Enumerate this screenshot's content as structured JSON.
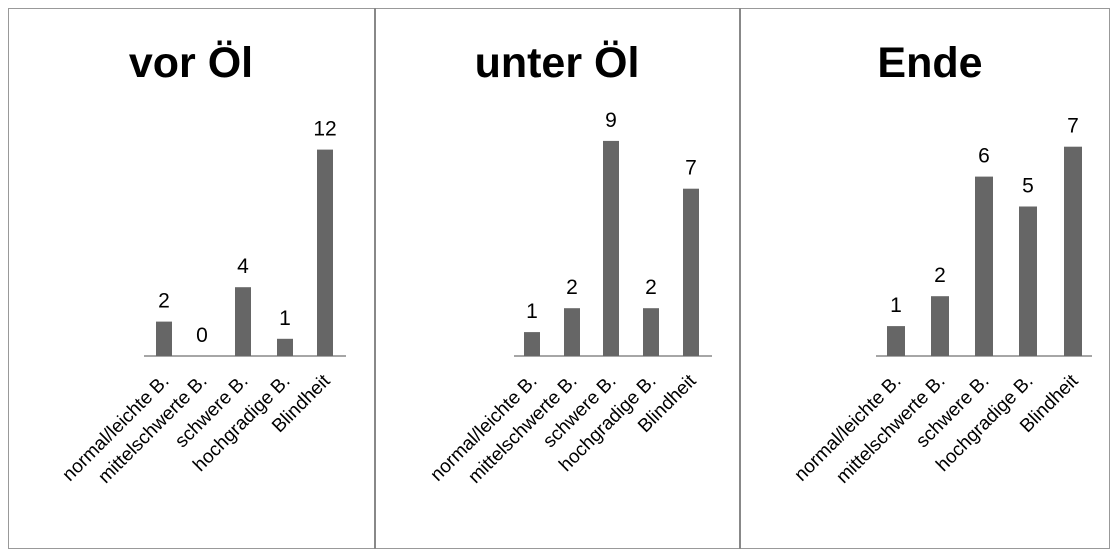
{
  "chart_data": [
    {
      "type": "bar",
      "title": "vor Öl",
      "categories": [
        "normal/leichte B.",
        "mittelschwerte B.",
        "schwere B.",
        "hochgradige B.",
        "Blindheit"
      ],
      "values": [
        2,
        0,
        4,
        1,
        12
      ],
      "data_labels": [
        "2",
        "0",
        "4",
        "1",
        "12"
      ],
      "color": "#666666"
    },
    {
      "type": "bar",
      "title": "unter Öl",
      "categories": [
        "normal/leichte B.",
        "mittelschwerte B.",
        "schwere B.",
        "hochgradige B.",
        "Blindheit"
      ],
      "values": [
        1,
        2,
        9,
        2,
        7
      ],
      "data_labels": [
        "1",
        "2",
        "9",
        "2",
        "7"
      ],
      "color": "#666666"
    },
    {
      "type": "bar",
      "title": "Ende",
      "categories": [
        "normal/leichte B.",
        "mittelschwerte B.",
        "schwere B.",
        "hochgradige B.",
        "Blindheit"
      ],
      "values": [
        1,
        2,
        6,
        5,
        7
      ],
      "data_labels": [
        "1",
        "2",
        "6",
        "5",
        "7"
      ],
      "color": "#666666"
    }
  ]
}
